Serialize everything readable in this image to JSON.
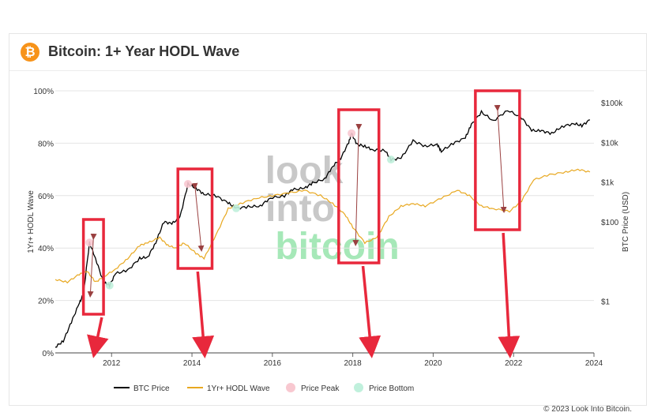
{
  "header": {
    "title": "Bitcoin: 1+ Year HODL Wave",
    "icon": "bitcoin-icon",
    "icon_glyph": "₿"
  },
  "watermark": {
    "line1": "look",
    "line2": "into",
    "line3": "bitcoin",
    "colors": [
      "#c8c8c8",
      "#a6e8b8"
    ]
  },
  "copyright": "© 2023 Look Into Bitcoin.",
  "colors": {
    "btc_price": "#000000",
    "hodl": "#e8a820",
    "price_peak": "#f8c8d0",
    "price_bottom": "#c0f0dc",
    "highlight_box": "#e8283c",
    "arrow": "#e8283c",
    "inner_arrow": "#9a4040"
  },
  "chart_data": {
    "type": "line",
    "x_ticks": [
      "2012",
      "2014",
      "2016",
      "2018",
      "2020",
      "2022",
      "2024"
    ],
    "xlim": [
      2010.6,
      2024.0
    ],
    "y_left": {
      "label": "1Yr+ HODL Wave",
      "ticks": [
        "0%",
        "20%",
        "40%",
        "60%",
        "80%",
        "100%"
      ],
      "range": [
        0,
        100
      ]
    },
    "y_right": {
      "label": "BTC Price (USD)",
      "scale": "log",
      "ticks": [
        "$1",
        "$100",
        "$1k",
        "$10k",
        "$100k"
      ],
      "tick_values": [
        1,
        100,
        1000,
        10000,
        100000
      ],
      "range": [
        0.05,
        200000
      ]
    },
    "legend": {
      "placement": "bottom",
      "items": [
        {
          "label": "BTC Price",
          "kind": "line",
          "color": "#000000"
        },
        {
          "label": "1Yr+ HODL Wave",
          "kind": "line",
          "color": "#e8a820"
        },
        {
          "label": "Price Peak",
          "kind": "dot",
          "color": "#f8c8d0"
        },
        {
          "label": "Price Bottom",
          "kind": "dot",
          "color": "#c0f0dc"
        }
      ]
    },
    "series": [
      {
        "name": "BTC Price",
        "axis": "right",
        "points": [
          [
            2010.6,
            0.07
          ],
          [
            2010.8,
            0.1
          ],
          [
            2011.0,
            0.3
          ],
          [
            2011.2,
            0.9
          ],
          [
            2011.3,
            1.5
          ],
          [
            2011.45,
            30
          ],
          [
            2011.6,
            12
          ],
          [
            2011.8,
            3
          ],
          [
            2011.95,
            2.5
          ],
          [
            2012.1,
            5
          ],
          [
            2012.4,
            6
          ],
          [
            2012.7,
            12
          ],
          [
            2012.9,
            13
          ],
          [
            2013.1,
            30
          ],
          [
            2013.3,
            100
          ],
          [
            2013.5,
            90
          ],
          [
            2013.7,
            130
          ],
          [
            2013.9,
            900
          ],
          [
            2014.1,
            700
          ],
          [
            2014.3,
            500
          ],
          [
            2014.6,
            450
          ],
          [
            2014.9,
            300
          ],
          [
            2015.1,
            220
          ],
          [
            2015.4,
            240
          ],
          [
            2015.7,
            250
          ],
          [
            2015.95,
            400
          ],
          [
            2016.3,
            450
          ],
          [
            2016.5,
            650
          ],
          [
            2016.8,
            700
          ],
          [
            2017.0,
            950
          ],
          [
            2017.3,
            1200
          ],
          [
            2017.5,
            2500
          ],
          [
            2017.7,
            4000
          ],
          [
            2017.9,
            10000
          ],
          [
            2017.97,
            17000
          ],
          [
            2018.1,
            9000
          ],
          [
            2018.3,
            8000
          ],
          [
            2018.5,
            6500
          ],
          [
            2018.8,
            6300
          ],
          [
            2018.95,
            3700
          ],
          [
            2019.2,
            4000
          ],
          [
            2019.5,
            11000
          ],
          [
            2019.8,
            8000
          ],
          [
            2020.1,
            9000
          ],
          [
            2020.2,
            6000
          ],
          [
            2020.5,
            9500
          ],
          [
            2020.8,
            13000
          ],
          [
            2020.95,
            28000
          ],
          [
            2021.2,
            58000
          ],
          [
            2021.5,
            35000
          ],
          [
            2021.85,
            65000
          ],
          [
            2022.2,
            42000
          ],
          [
            2022.45,
            20000
          ],
          [
            2022.7,
            19500
          ],
          [
            2022.95,
            16800
          ],
          [
            2023.2,
            25000
          ],
          [
            2023.5,
            30000
          ],
          [
            2023.7,
            26500
          ],
          [
            2023.9,
            37000
          ]
        ]
      },
      {
        "name": "1Yr+ HODL Wave",
        "axis": "left",
        "points": [
          [
            2010.6,
            28
          ],
          [
            2010.9,
            27
          ],
          [
            2011.2,
            30
          ],
          [
            2011.4,
            31
          ],
          [
            2011.6,
            27
          ],
          [
            2011.8,
            29
          ],
          [
            2012.1,
            32
          ],
          [
            2012.4,
            36
          ],
          [
            2012.7,
            41
          ],
          [
            2012.9,
            42
          ],
          [
            2013.2,
            44
          ],
          [
            2013.4,
            41
          ],
          [
            2013.6,
            40
          ],
          [
            2013.8,
            42
          ],
          [
            2014.1,
            38
          ],
          [
            2014.3,
            36
          ],
          [
            2014.6,
            45
          ],
          [
            2014.9,
            55
          ],
          [
            2015.2,
            57
          ],
          [
            2015.6,
            59
          ],
          [
            2016.0,
            60
          ],
          [
            2016.4,
            61
          ],
          [
            2016.8,
            62
          ],
          [
            2017.2,
            60
          ],
          [
            2017.5,
            57
          ],
          [
            2017.8,
            53
          ],
          [
            2018.0,
            48
          ],
          [
            2018.3,
            42
          ],
          [
            2018.6,
            44
          ],
          [
            2018.9,
            52
          ],
          [
            2019.2,
            56
          ],
          [
            2019.5,
            57
          ],
          [
            2019.8,
            56
          ],
          [
            2020.2,
            59
          ],
          [
            2020.6,
            62
          ],
          [
            2020.9,
            60
          ],
          [
            2021.2,
            56
          ],
          [
            2021.5,
            55
          ],
          [
            2021.9,
            54
          ],
          [
            2022.2,
            58
          ],
          [
            2022.5,
            66
          ],
          [
            2022.9,
            68
          ],
          [
            2023.3,
            69
          ],
          [
            2023.6,
            70
          ],
          [
            2023.9,
            69
          ]
        ]
      }
    ],
    "price_peaks": [
      [
        2011.45,
        30
      ],
      [
        2013.9,
        900
      ],
      [
        2017.97,
        17000
      ]
    ],
    "price_bottoms": [
      [
        2011.95,
        2.5
      ],
      [
        2015.1,
        220
      ],
      [
        2018.95,
        3700
      ]
    ],
    "annotations": {
      "boxes": [
        [
          2011.3,
          2011.8
        ],
        [
          2013.65,
          2014.5
        ],
        [
          2017.65,
          2018.65
        ],
        [
          2021.05,
          2022.15
        ]
      ],
      "arrows_down": [
        2011.6,
        2014.3,
        2018.45,
        2021.9
      ]
    }
  }
}
